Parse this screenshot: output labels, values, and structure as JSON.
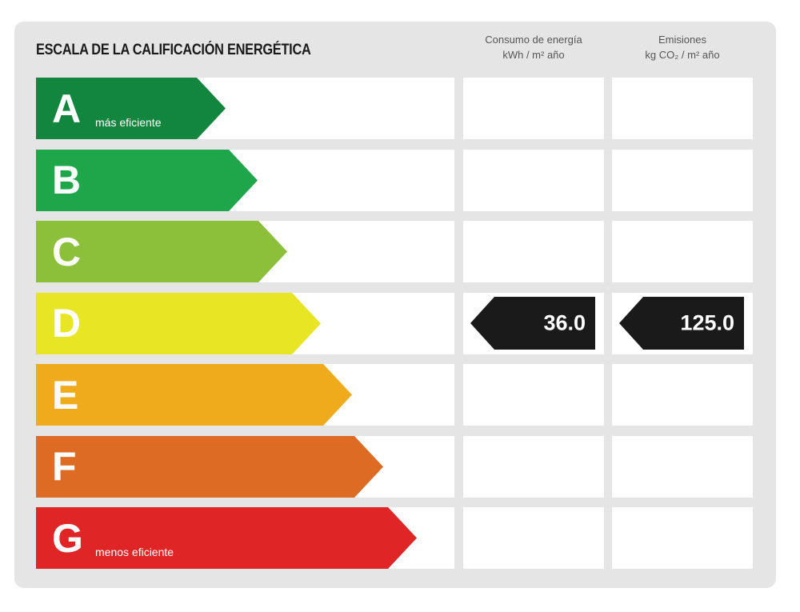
{
  "title": "ESCALA DE LA CALIFICACIÓN ENERGÉTICA",
  "columns": [
    {
      "line1": "Consumo de energía",
      "line2": "kWh / m² año"
    },
    {
      "line1": "Emisiones",
      "line2": "kg CO₂ / m² año"
    }
  ],
  "ratings": [
    {
      "letter": "A",
      "sublabel": "más eficiente",
      "color": "#12863f"
    },
    {
      "letter": "B",
      "sublabel": "",
      "color": "#1fa64a"
    },
    {
      "letter": "C",
      "sublabel": "",
      "color": "#8dc03a"
    },
    {
      "letter": "D",
      "sublabel": "",
      "color": "#e7e524"
    },
    {
      "letter": "E",
      "sublabel": "",
      "color": "#efab1b"
    },
    {
      "letter": "F",
      "sublabel": "",
      "color": "#de6b24"
    },
    {
      "letter": "G",
      "sublabel": "menos eficiente",
      "color": "#e02527"
    }
  ],
  "current": {
    "rating": "D",
    "consumo_value": "36.0",
    "emisiones_value": "125.0",
    "indicator_color": "#1a1a1a"
  }
}
